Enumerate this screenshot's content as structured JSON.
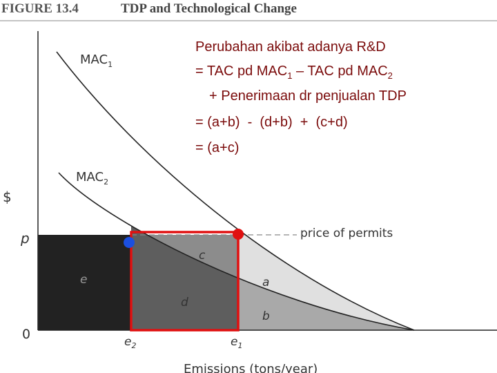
{
  "header": {
    "figure": "FIGURE 13.4",
    "title": "TDP and Technological Change"
  },
  "axes": {
    "y_label": "$",
    "x_label": "Emissions (tons/year)",
    "price": "p",
    "origin": "0",
    "e2": {
      "base": "e",
      "sub": "2"
    },
    "e1": {
      "base": "e",
      "sub": "1"
    }
  },
  "curves": [
    {
      "base": "MAC",
      "sub": "1"
    },
    {
      "base": "MAC",
      "sub": "2"
    }
  ],
  "price_line_label": "price of permits",
  "regions": {
    "a": "a",
    "b": "b",
    "c": "c",
    "d": "d",
    "e": "e"
  },
  "annotation": {
    "line1": "Perubahan akibat adanya R&D",
    "line2": {
      "part1": "= TAC pd MAC",
      "sub1": "1",
      "part2": " – TAC pd MAC",
      "sub2": "2"
    },
    "line3": "+ Penerimaan dr penjualan TDP",
    "line4": "= (a+b)  -  (d+b)  +  (c+d)",
    "line5": "= (a+c)"
  }
}
